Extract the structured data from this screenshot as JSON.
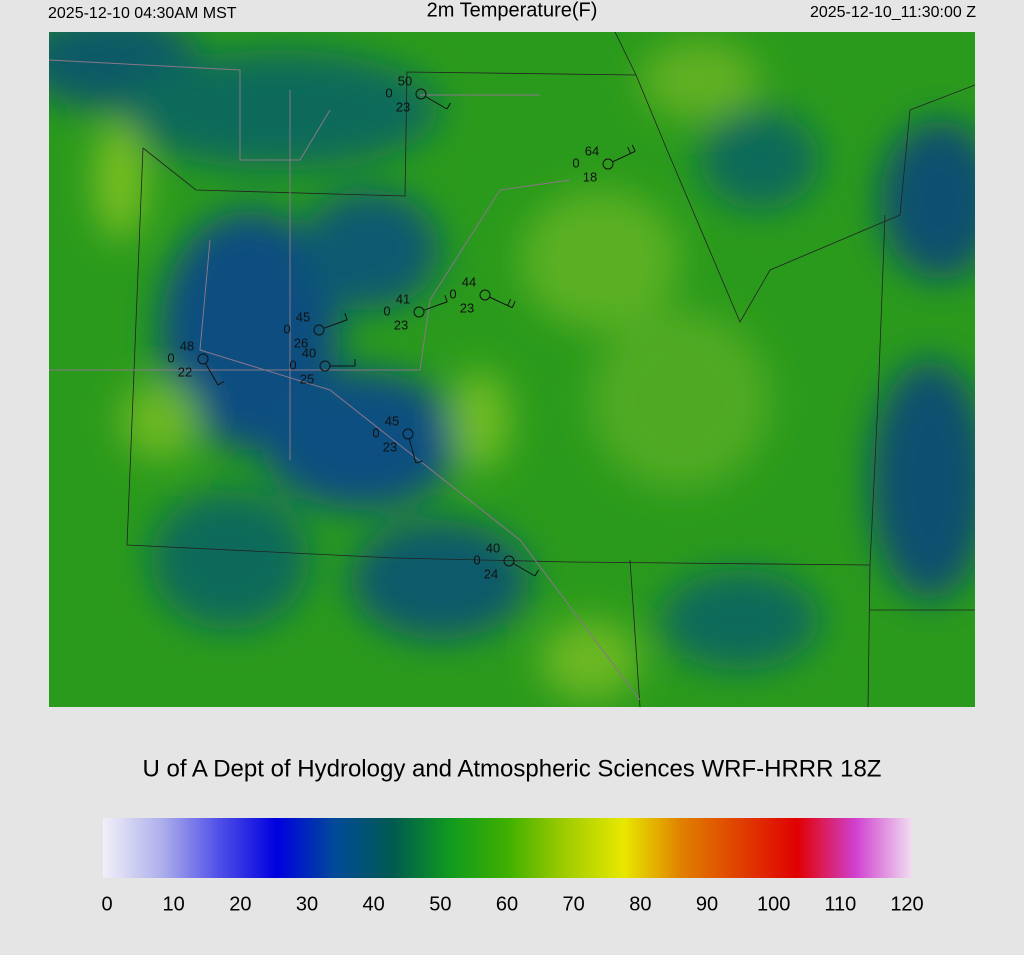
{
  "header": {
    "local_time": "2025-12-10 04:30AM MST",
    "title": "2m Temperature(F)",
    "valid_time": "2025-12-10_11:30:00 Z"
  },
  "stations": [
    {
      "t": 50,
      "p": 0,
      "d": 23
    },
    {
      "t": 64,
      "p": 0,
      "d": 18
    },
    {
      "t": 41,
      "p": 0,
      "d": 23
    },
    {
      "t": 44,
      "p": 0,
      "d": 23
    },
    {
      "t": 45,
      "p": 0,
      "d": 26
    },
    {
      "t": 40,
      "p": 0,
      "d": 25
    },
    {
      "t": 48,
      "p": 0,
      "d": 22
    },
    {
      "t": 45,
      "p": 0,
      "d": 23
    },
    {
      "t": 40,
      "p": 0,
      "d": 24
    }
  ],
  "footer": "U of A Dept of Hydrology and Atmospheric Sciences WRF-HRRR 18Z",
  "colorbar": {
    "lim": [
      0,
      120
    ],
    "ticks": [
      0,
      10,
      20,
      30,
      40,
      50,
      60,
      70,
      80,
      90,
      100,
      110,
      120
    ],
    "colors": [
      "#f0f0f8",
      "#b0b0ec",
      "#5050e8",
      "#0000e0",
      "#004a9a",
      "#005a50",
      "#109a20",
      "#40b000",
      "#a0cc00",
      "#e8e800",
      "#e08000",
      "#e04000",
      "#e00000",
      "#d040d0",
      "#f0e0f0"
    ]
  }
}
